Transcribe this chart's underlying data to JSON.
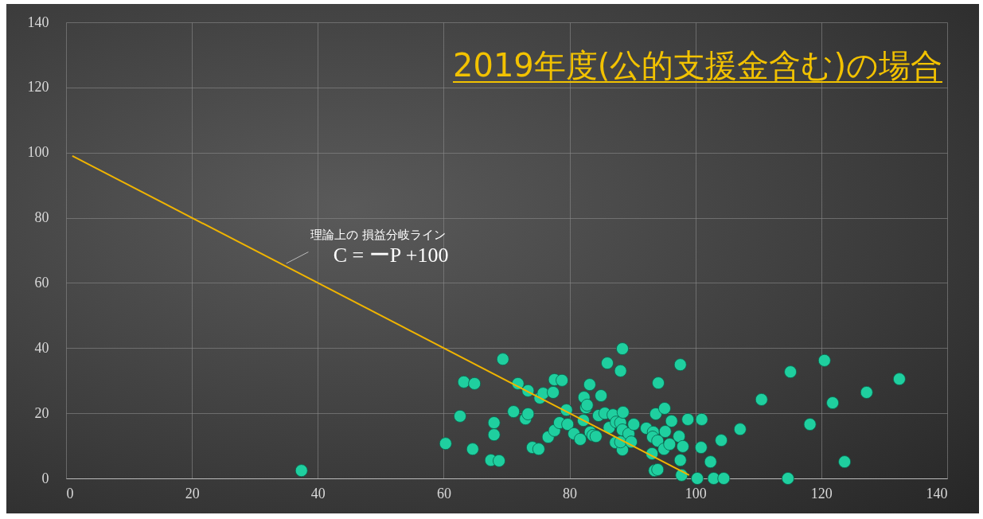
{
  "chart_data": {
    "type": "scatter",
    "title": "2019年度(公的支援金含む)の場合",
    "xlim": [
      0,
      140
    ],
    "xticks": [
      0,
      20,
      40,
      60,
      80,
      100,
      120,
      140
    ],
    "ylim": [
      0,
      140
    ],
    "yticks": [
      0,
      20,
      40,
      60,
      80,
      100,
      120,
      140
    ],
    "grid": true,
    "marker": "circle",
    "annotations": [
      {
        "text": "理論上の 損益分岐ライン",
        "x": 35,
        "y": 66
      },
      {
        "text": "C = ーP +100",
        "x": 35,
        "y": 66
      }
    ],
    "series": [
      {
        "color": "#1fcf9f",
        "x": [
          37.4,
          60.3,
          62.6,
          63.2,
          64.9,
          64.6,
          67.5,
          68.8,
          68.0,
          68.0,
          69.4,
          71.1,
          71.8,
          73.0,
          73.4,
          73.4,
          74.1,
          75.1,
          75.3,
          75.8,
          76.6,
          77.4,
          77.6,
          77.6,
          78.4,
          78.8,
          79.5,
          79.7,
          80.7,
          81.7,
          82.2,
          82.3,
          82.6,
          82.8,
          83.2,
          83.3,
          83.7,
          84.2,
          84.6,
          85.0,
          85.6,
          86.0,
          86.3,
          86.9,
          87.3,
          87.4,
          88.1,
          88.1,
          88.4,
          88.4,
          88.5,
          88.4,
          88.1,
          89.4,
          89.8,
          90.2,
          92.2,
          93.1,
          93.3,
          93.2,
          93.5,
          93.7,
          94.0,
          94.0,
          94.1,
          95.1,
          95.0,
          95.2,
          95.9,
          96.2,
          97.4,
          97.6,
          97.6,
          97.8,
          98.0,
          98.8,
          100.3,
          101.0,
          100.9,
          102.4,
          102.9,
          104.5,
          104.1,
          107.1,
          110.5,
          114.7,
          115.1,
          118.2,
          120.5,
          121.8,
          123.7,
          127.2,
          132.4
        ],
        "values": [
          2.4,
          10.7,
          19.1,
          29.6,
          29.1,
          9.0,
          5.6,
          5.4,
          17.1,
          13.4,
          36.6,
          20.5,
          29.1,
          18.3,
          19.8,
          26.9,
          9.5,
          9.0,
          24.7,
          26.1,
          12.7,
          26.4,
          30.3,
          14.7,
          17.1,
          30.1,
          21.0,
          16.6,
          13.7,
          12.0,
          17.8,
          24.9,
          21.7,
          22.5,
          28.8,
          14.2,
          13.2,
          12.9,
          19.3,
          25.4,
          20.0,
          35.4,
          15.6,
          19.5,
          11.0,
          17.3,
          17.1,
          33.0,
          39.8,
          14.9,
          20.3,
          8.8,
          11.2,
          13.7,
          11.2,
          16.6,
          15.4,
          7.6,
          14.2,
          12.7,
          2.4,
          19.8,
          11.5,
          2.7,
          29.3,
          21.5,
          9.0,
          14.4,
          10.5,
          17.6,
          12.9,
          34.9,
          5.6,
          1.0,
          9.8,
          18.1,
          0,
          18.1,
          9.5,
          5.1,
          0,
          0,
          11.7,
          15.1,
          24.2,
          0,
          32.7,
          16.6,
          36.2,
          23.2,
          5.1,
          26.4,
          30.5
        ]
      },
      {
        "type": "line",
        "marker": "none",
        "color": "#f0b400",
        "x": [
          1,
          99
        ],
        "values": [
          99,
          1
        ]
      }
    ]
  }
}
